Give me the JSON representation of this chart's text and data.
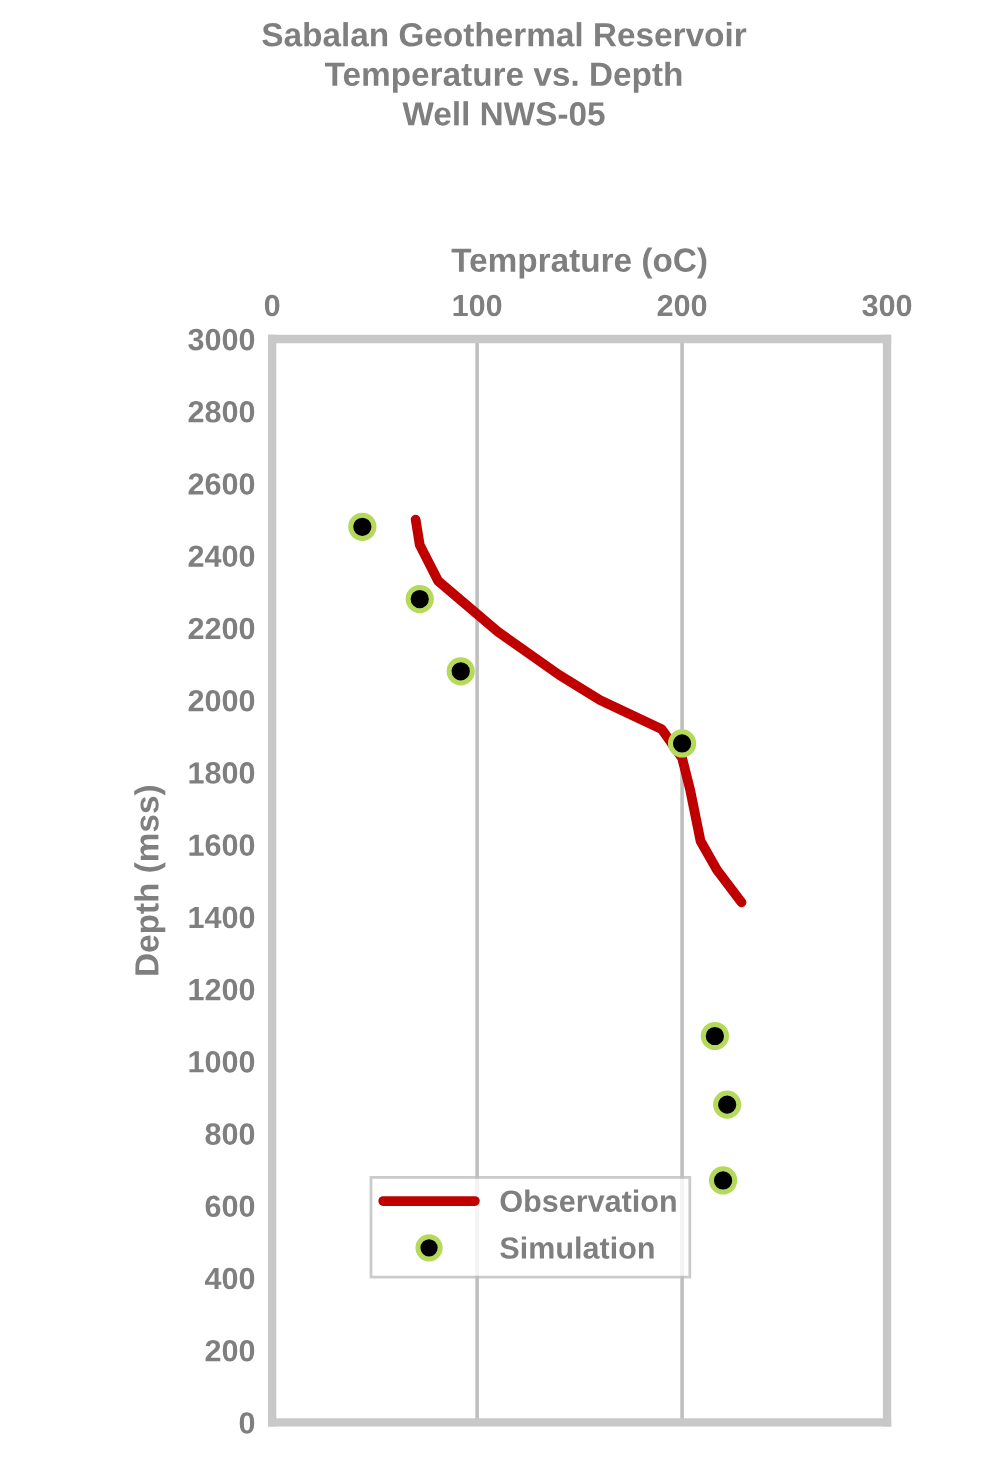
{
  "chart_data": {
    "type": "line",
    "title": "Sabalan Geothermal Reservoir\nTemperature vs. Depth\nWell NWS-05",
    "xlabel": "Temprature (oC)",
    "ylabel": "Depth (mss)",
    "xlim": [
      0,
      300
    ],
    "xticks": [
      0,
      100,
      200,
      300
    ],
    "ylim": [
      0,
      3000
    ],
    "yticks": [
      0,
      200,
      400,
      600,
      800,
      1000,
      1200,
      1400,
      1600,
      1800,
      2000,
      2200,
      2400,
      2600,
      2800,
      3000
    ],
    "grid": "x",
    "legend": "bottom",
    "series": [
      {
        "name": "Observation",
        "color": "#c00000",
        "marker": "none",
        "line_style": "solid",
        "x": [
          70,
          72,
          81,
          110,
          140,
          160,
          190,
          200,
          204,
          209,
          217,
          229
        ],
        "values": [
          2500,
          2430,
          2330,
          2190,
          2070,
          2000,
          1920,
          1840,
          1750,
          1610,
          1530,
          1440
        ]
      },
      {
        "name": "Simulation",
        "type": "scatter",
        "color": "#000000",
        "marker": "circle",
        "x": [
          44,
          72,
          92,
          200,
          216,
          222,
          220
        ],
        "values": [
          2480,
          2280,
          2080,
          1880,
          1070,
          880,
          670
        ]
      }
    ]
  }
}
